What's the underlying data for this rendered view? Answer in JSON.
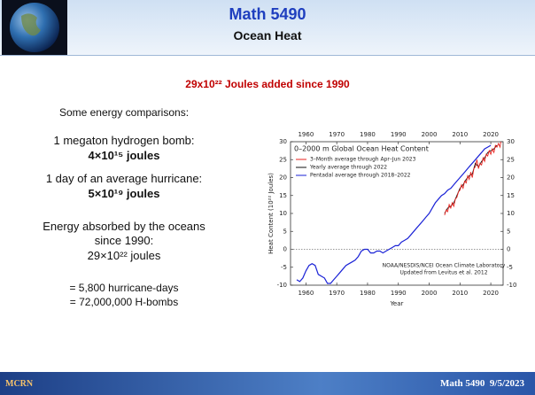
{
  "header": {
    "title": "Math 5490",
    "subtitle": "Ocean Heat"
  },
  "headline": "29x10²² Joules added since 1990",
  "comparisons": {
    "intro": "Some energy comparisons:",
    "bomb": {
      "label": "1 megaton hydrogen bomb:",
      "value": "4×10¹⁵ joules"
    },
    "hurricane": {
      "label": "1 day of an average hurricane:",
      "value": "5×10¹⁹ joules"
    },
    "ocean": {
      "label": [
        "Energy absorbed by the oceans",
        "since 1990:"
      ],
      "value": "29×10²² joules"
    },
    "equivalents": [
      "= 5,800 hurricane-days",
      "= 72,000,000 H-bombs"
    ]
  },
  "chart_data": {
    "type": "line",
    "title": "0–2000 m Global Ocean Heat Content",
    "xlabel": "Year",
    "ylabel": "Heat Content (10²² Joules)",
    "annotation": [
      "NOAA/NESDIS/NCEI Ocean Climate Laboratory",
      "Updated from Levitus et al. 2012"
    ],
    "xlim": [
      1955,
      2024
    ],
    "ylim": [
      -10,
      30
    ],
    "xticks": [
      1960,
      1970,
      1980,
      1990,
      2000,
      2010,
      2020
    ],
    "yticks": [
      -10,
      -5,
      0,
      5,
      10,
      15,
      20,
      25,
      30
    ],
    "zero_line": true,
    "series": [
      {
        "name": "3–Month average through Apr–Jun 2023",
        "color": "#e8231f",
        "x": [
          2005,
          2005.5,
          2006,
          2006.5,
          2007,
          2007.5,
          2008,
          2008.5,
          2009,
          2009.5,
          2010,
          2010.5,
          2011,
          2011.5,
          2012,
          2012.5,
          2013,
          2013.5,
          2014,
          2014.5,
          2015,
          2015.5,
          2016,
          2016.5,
          2017,
          2017.5,
          2018,
          2018.5,
          2019,
          2019.5,
          2020,
          2020.5,
          2021,
          2021.5,
          2022,
          2022.5,
          2023,
          2023.25
        ],
        "values": [
          9.5,
          11,
          10.5,
          12.5,
          11.5,
          13,
          12,
          14,
          14.5,
          16,
          16.5,
          18,
          17,
          19,
          18.5,
          20.5,
          19.5,
          21.5,
          20,
          22.5,
          23,
          25,
          22.5,
          24,
          23.5,
          25.5,
          24.5,
          26.5,
          26,
          27.5,
          26.5,
          28,
          27,
          29,
          28.5,
          29.5,
          28.5,
          30
        ]
      },
      {
        "name": "Yearly average through 2022",
        "color": "#111111",
        "x": [
          2005,
          2006,
          2007,
          2008,
          2009,
          2010,
          2011,
          2012,
          2013,
          2014,
          2015,
          2016,
          2017,
          2018,
          2019,
          2020,
          2021,
          2022
        ],
        "values": [
          10,
          11.5,
          12,
          13,
          15,
          17,
          18,
          19.5,
          20.5,
          21,
          24,
          23,
          24.5,
          25.5,
          27,
          27.5,
          28,
          29
        ]
      },
      {
        "name": "Pentadal average through 2018–2022",
        "color": "#1a22d6",
        "x": [
          1957,
          1958,
          1959,
          1960,
          1961,
          1962,
          1963,
          1964,
          1965,
          1966,
          1967,
          1968,
          1969,
          1970,
          1971,
          1972,
          1973,
          1974,
          1975,
          1976,
          1977,
          1978,
          1979,
          1980,
          1981,
          1982,
          1983,
          1984,
          1985,
          1986,
          1987,
          1988,
          1989,
          1990,
          1991,
          1992,
          1993,
          1994,
          1995,
          1996,
          1997,
          1998,
          1999,
          2000,
          2001,
          2002,
          2003,
          2004,
          2005,
          2006,
          2007,
          2008,
          2009,
          2010,
          2011,
          2012,
          2013,
          2014,
          2015,
          2016,
          2017,
          2018,
          2019,
          2020
        ],
        "values": [
          -8.5,
          -9,
          -8,
          -6,
          -4.5,
          -4,
          -4.5,
          -7,
          -7.5,
          -8,
          -9.5,
          -9.5,
          -8.5,
          -7.5,
          -6.5,
          -5.5,
          -4.5,
          -4,
          -3.5,
          -3,
          -2,
          -0.5,
          0,
          0,
          -1,
          -1,
          -0.5,
          -0.5,
          -1,
          -0.5,
          0,
          0.5,
          1,
          1,
          2,
          2.5,
          3,
          4,
          5,
          6,
          7,
          8,
          9,
          10,
          11.5,
          13,
          14,
          15,
          15.5,
          16.5,
          17,
          18,
          19,
          20,
          21,
          22,
          23,
          24,
          25,
          26,
          27,
          28,
          28.5,
          29
        ]
      }
    ]
  },
  "footer": {
    "logo": "MCRN",
    "text": "Math 5490  9/5/2023"
  }
}
